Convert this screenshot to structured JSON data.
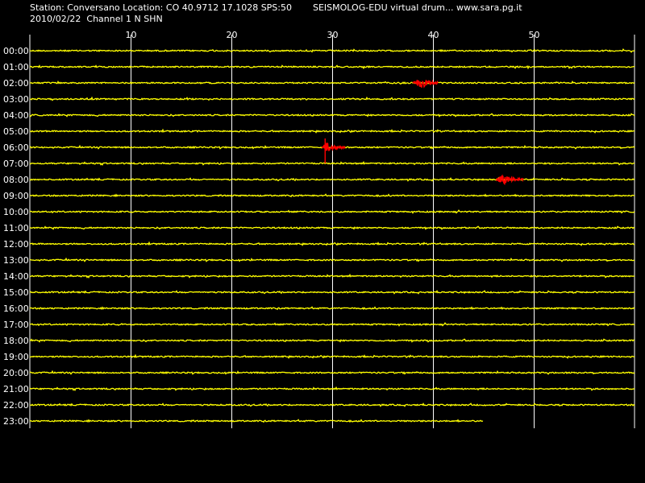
{
  "header": {
    "station_line": "Station: Conversano Location: CO 40.9712 17.1028 SPS:50",
    "app_line": "SEISMOLOG-EDU virtual drum... www.sara.pg.it",
    "date_line": "2010/02/22  Channel 1 N SHN"
  },
  "colors": {
    "background": "#000000",
    "grid": "#ffffff",
    "trace": "#ffff00",
    "event": "#ff0000"
  },
  "chart_data": {
    "type": "line",
    "title": "",
    "xlabel": "",
    "ylabel": "",
    "xlim": [
      0,
      60
    ],
    "x_ticks": [
      10,
      20,
      30,
      40,
      50
    ],
    "hours": [
      "00:00",
      "01:00",
      "02:00",
      "03:00",
      "04:00",
      "05:00",
      "06:00",
      "07:00",
      "08:00",
      "09:00",
      "10:00",
      "11:00",
      "12:00",
      "13:00",
      "14:00",
      "15:00",
      "16:00",
      "17:00",
      "18:00",
      "19:00",
      "20:00",
      "21:00",
      "22:00",
      "23:00"
    ],
    "trace_end_minute": [
      60,
      60,
      60,
      60,
      60,
      60,
      60,
      60,
      60,
      60,
      60,
      60,
      60,
      60,
      60,
      60,
      60,
      60,
      60,
      60,
      60,
      60,
      60,
      45
    ],
    "events": [
      {
        "hour": "02:00",
        "start": 38.0,
        "end": 40.5,
        "peak": 38.8
      },
      {
        "hour": "06:00",
        "start": 29.0,
        "end": 31.3,
        "peak": 29.3
      },
      {
        "hour": "08:00",
        "start": 46.3,
        "end": 49.0,
        "peak": 46.9
      }
    ],
    "grid": true
  }
}
